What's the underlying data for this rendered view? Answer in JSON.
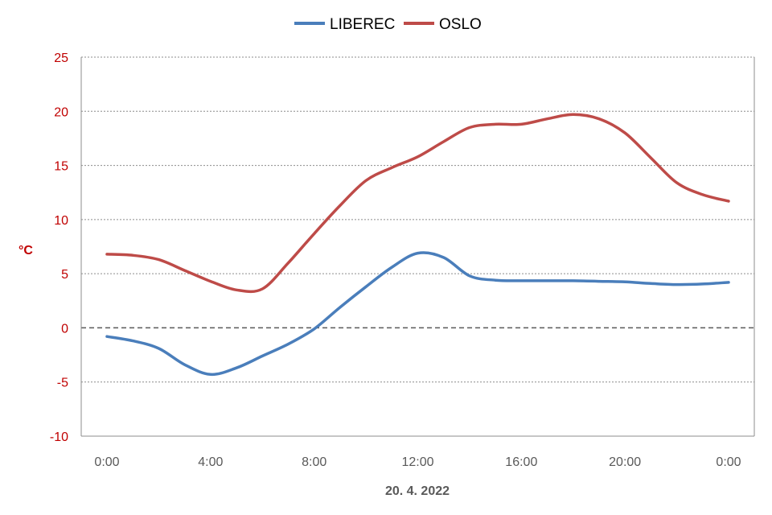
{
  "chart_data": {
    "type": "line",
    "title": "",
    "xlabel": "20. 4. 2022",
    "ylabel": "°C",
    "ylim": [
      -10,
      25
    ],
    "yticks": [
      -10,
      -5,
      0,
      5,
      10,
      15,
      20,
      25
    ],
    "x_tick_labels": [
      "0:00",
      "4:00",
      "8:00",
      "12:00",
      "16:00",
      "20:00",
      "0:00"
    ],
    "x_hours": [
      0,
      1,
      2,
      3,
      4,
      5,
      6,
      7,
      8,
      9,
      10,
      11,
      12,
      13,
      14,
      15,
      16,
      17,
      18,
      19,
      20,
      21,
      22,
      23,
      24
    ],
    "grid": true,
    "legend_position": "top-center",
    "series": [
      {
        "name": "LIBEREC",
        "color": "#4a7ebb",
        "values": [
          -0.8,
          -1.2,
          -1.9,
          -3.4,
          -4.3,
          -3.7,
          -2.6,
          -1.5,
          -0.1,
          1.9,
          3.8,
          5.6,
          6.9,
          6.5,
          4.8,
          4.4,
          4.35,
          4.35,
          4.35,
          4.3,
          4.25,
          4.1,
          4.0,
          4.05,
          4.2
        ]
      },
      {
        "name": "OSLO",
        "color": "#be4b48",
        "values": [
          6.8,
          6.7,
          6.3,
          5.3,
          4.3,
          3.5,
          3.6,
          6.0,
          8.7,
          11.3,
          13.6,
          14.8,
          15.8,
          17.2,
          18.5,
          18.8,
          18.8,
          19.3,
          19.7,
          19.3,
          18.0,
          15.7,
          13.4,
          12.3,
          11.7
        ]
      }
    ]
  }
}
